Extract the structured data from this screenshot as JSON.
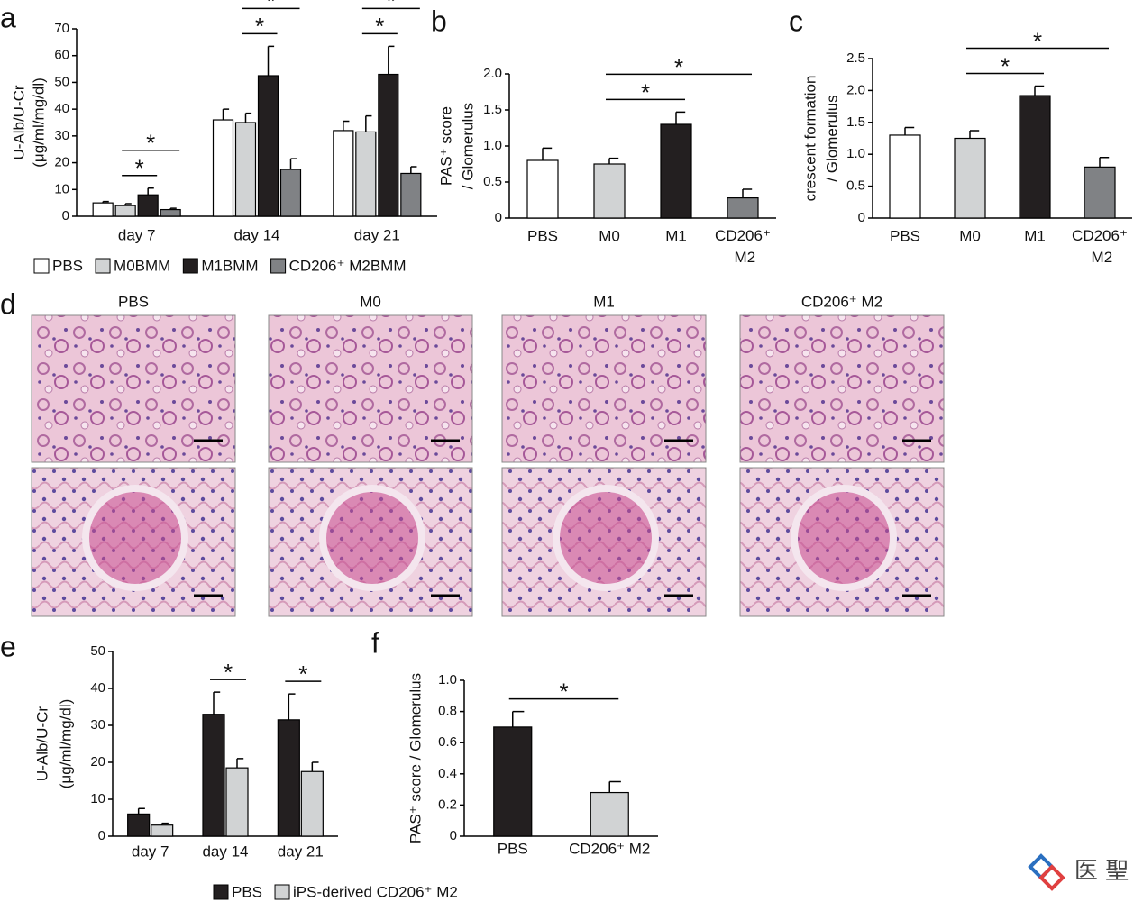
{
  "chart_data": [
    {
      "type": "bar",
      "panel": "a",
      "ylabel": [
        "U-Alb/U-Cr",
        "(μg/ml/mg/dl)"
      ],
      "ylim": [
        0,
        70
      ],
      "yticks": [
        0,
        10,
        20,
        30,
        40,
        50,
        60,
        70
      ],
      "categories": [
        "day 7",
        "day 14",
        "day 21"
      ],
      "series": [
        {
          "name": "PBS",
          "color": "#ffffff",
          "values": [
            5,
            36,
            32
          ],
          "errors": [
            0.5,
            4,
            3.5
          ]
        },
        {
          "name": "M0BMM",
          "color": "#d1d3d4",
          "values": [
            4,
            35,
            31.5
          ],
          "errors": [
            0.7,
            3.5,
            6
          ]
        },
        {
          "name": "M1BMM",
          "color": "#231f20",
          "values": [
            8,
            52.5,
            53
          ],
          "errors": [
            2.5,
            11,
            10.5
          ]
        },
        {
          "name": "CD206⁺ M2BMM",
          "color": "#808285",
          "values": [
            2.5,
            17.5,
            16
          ],
          "errors": [
            0.5,
            4,
            2.5
          ]
        }
      ],
      "annotations": [
        {
          "text": "*",
          "category": "day 7",
          "between": [
            "M0BMM",
            "M1BMM"
          ]
        },
        {
          "text": "*",
          "category": "day 7",
          "between": [
            "M0BMM",
            "CD206⁺ M2BMM"
          ]
        },
        {
          "text": "*",
          "category": "day 14",
          "between": [
            "M0BMM",
            "M1BMM"
          ]
        },
        {
          "text": "*",
          "category": "day 14",
          "between": [
            "M0BMM",
            "CD206⁺ M2BMM"
          ]
        },
        {
          "text": "*",
          "category": "day 21",
          "between": [
            "M0BMM",
            "M1BMM"
          ]
        },
        {
          "text": "*",
          "category": "day 21",
          "between": [
            "M0BMM",
            "CD206⁺ M2BMM"
          ]
        }
      ]
    },
    {
      "type": "bar",
      "panel": "b",
      "ylabel": [
        "PAS⁺ score",
        "/ Glomerulus"
      ],
      "ylim": [
        0,
        2
      ],
      "yticks": [
        0,
        0.5,
        {
          "value": 1,
          "label": "1.0"
        },
        1.5,
        {
          "value": 2,
          "label": "2.0"
        }
      ],
      "categories": [
        "PBS",
        "M0",
        "M1",
        "CD206⁺ M2"
      ],
      "values": [
        0.8,
        0.75,
        1.3,
        0.28
      ],
      "errors": [
        0.17,
        0.08,
        0.17,
        0.12
      ],
      "colors": [
        "#ffffff",
        "#d1d3d4",
        "#231f20",
        "#808285"
      ],
      "annotations": [
        {
          "text": "*",
          "between": [
            "M0",
            "M1"
          ]
        },
        {
          "text": "*",
          "between": [
            "M0",
            "CD206⁺ M2"
          ]
        }
      ]
    },
    {
      "type": "bar",
      "panel": "c",
      "ylabel": [
        "crescent formation",
        "/ Glomerulus"
      ],
      "ylim": [
        0,
        2.5
      ],
      "yticks": [
        0,
        0.5,
        {
          "value": 1,
          "label": "1.0"
        },
        1.5,
        {
          "value": 2,
          "label": "2.0"
        },
        2.5
      ],
      "categories": [
        "PBS",
        "M0",
        "M1",
        "CD206⁺ M2"
      ],
      "values": [
        1.3,
        1.25,
        1.92,
        0.8
      ],
      "errors": [
        0.12,
        0.12,
        0.15,
        0.15
      ],
      "colors": [
        "#ffffff",
        "#d1d3d4",
        "#231f20",
        "#808285"
      ],
      "annotations": [
        {
          "text": "*",
          "between": [
            "M0",
            "M1"
          ]
        },
        {
          "text": "*",
          "between": [
            "M0",
            "CD206⁺ M2"
          ]
        }
      ]
    },
    {
      "type": "bar",
      "panel": "e",
      "ylabel": [
        "U-Alb/U-Cr",
        "(μg/ml/mg/dl)"
      ],
      "ylim": [
        0,
        50
      ],
      "yticks": [
        0,
        10,
        20,
        30,
        40,
        50
      ],
      "categories": [
        "day 7",
        "day 14",
        "day 21"
      ],
      "series": [
        {
          "name": "PBS",
          "color": "#231f20",
          "values": [
            6,
            33,
            31.5
          ],
          "errors": [
            1.5,
            6,
            7
          ]
        },
        {
          "name": "iPS-derived CD206⁺ M2",
          "color": "#d1d3d4",
          "values": [
            3,
            18.5,
            17.5
          ],
          "errors": [
            0.5,
            2.5,
            2.5
          ]
        }
      ],
      "annotations": [
        {
          "text": "*",
          "category": "day 14",
          "between": [
            "PBS",
            "iPS-derived CD206⁺ M2"
          ]
        },
        {
          "text": "*",
          "category": "day 21",
          "between": [
            "PBS",
            "iPS-derived CD206⁺ M2"
          ]
        }
      ]
    },
    {
      "type": "bar",
      "panel": "f",
      "ylabel": [
        "PAS⁺ score / Glomerulus"
      ],
      "ylim": [
        0,
        1
      ],
      "yticks": [
        0,
        0.2,
        0.4,
        0.6,
        0.8,
        {
          "value": 1,
          "label": "1.0"
        }
      ],
      "categories": [
        "PBS",
        "CD206⁺ M2"
      ],
      "values": [
        0.7,
        0.28
      ],
      "errors": [
        0.1,
        0.07
      ],
      "colors": [
        "#231f20",
        "#d1d3d4"
      ],
      "annotations": [
        {
          "text": "*",
          "between": [
            "PBS",
            "CD206⁺ M2"
          ]
        }
      ]
    }
  ],
  "panel_d": {
    "panel": "d",
    "titles": [
      "PBS",
      "M0",
      "M1",
      "CD206⁺ M2"
    ]
  },
  "watermark": "医 聖"
}
